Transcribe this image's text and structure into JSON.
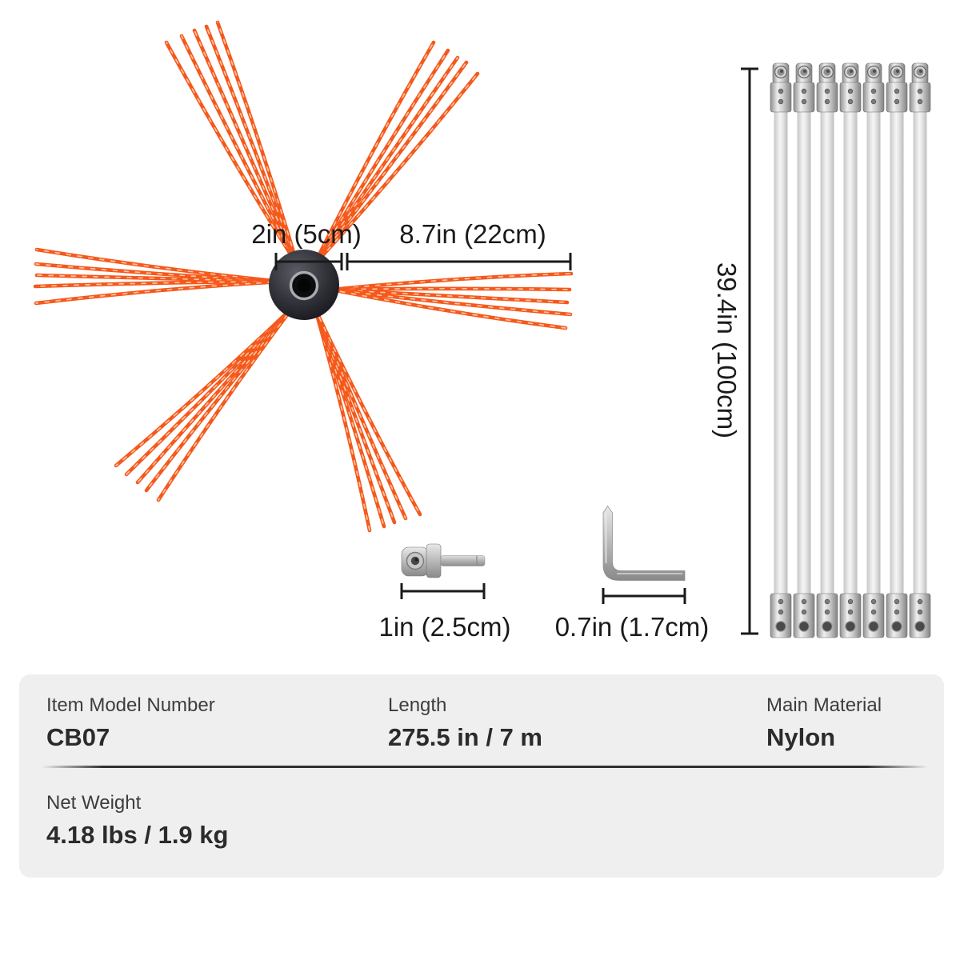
{
  "diagram": {
    "brush": {
      "hub_dim_label": "2in (5cm)",
      "bristle_dim_label": "8.7in (22cm)",
      "tuft_count": 6,
      "strands_per_tuft": 5,
      "bristle_color": "#f4591b",
      "bristle_highlight": "#ffd4ba",
      "hub_color": "#2a2a31"
    },
    "rods": {
      "count": 7,
      "length_dim_label": "39.4in (100cm)"
    },
    "adapter": {
      "length_dim_label": "1in (2.5cm)"
    },
    "hex_key": {
      "length_dim_label": "0.7in (1.7cm)"
    },
    "dim_color": "#1a1a1a"
  },
  "specs": {
    "background": "#efefef",
    "cells": [
      {
        "label": "Item Model Number",
        "value": "CB07"
      },
      {
        "label": "Length",
        "value": "275.5 in / 7 m"
      },
      {
        "label": "Main Material",
        "value": "Nylon"
      },
      {
        "label": "Net Weight",
        "value": "4.18 lbs / 1.9 kg"
      }
    ]
  }
}
